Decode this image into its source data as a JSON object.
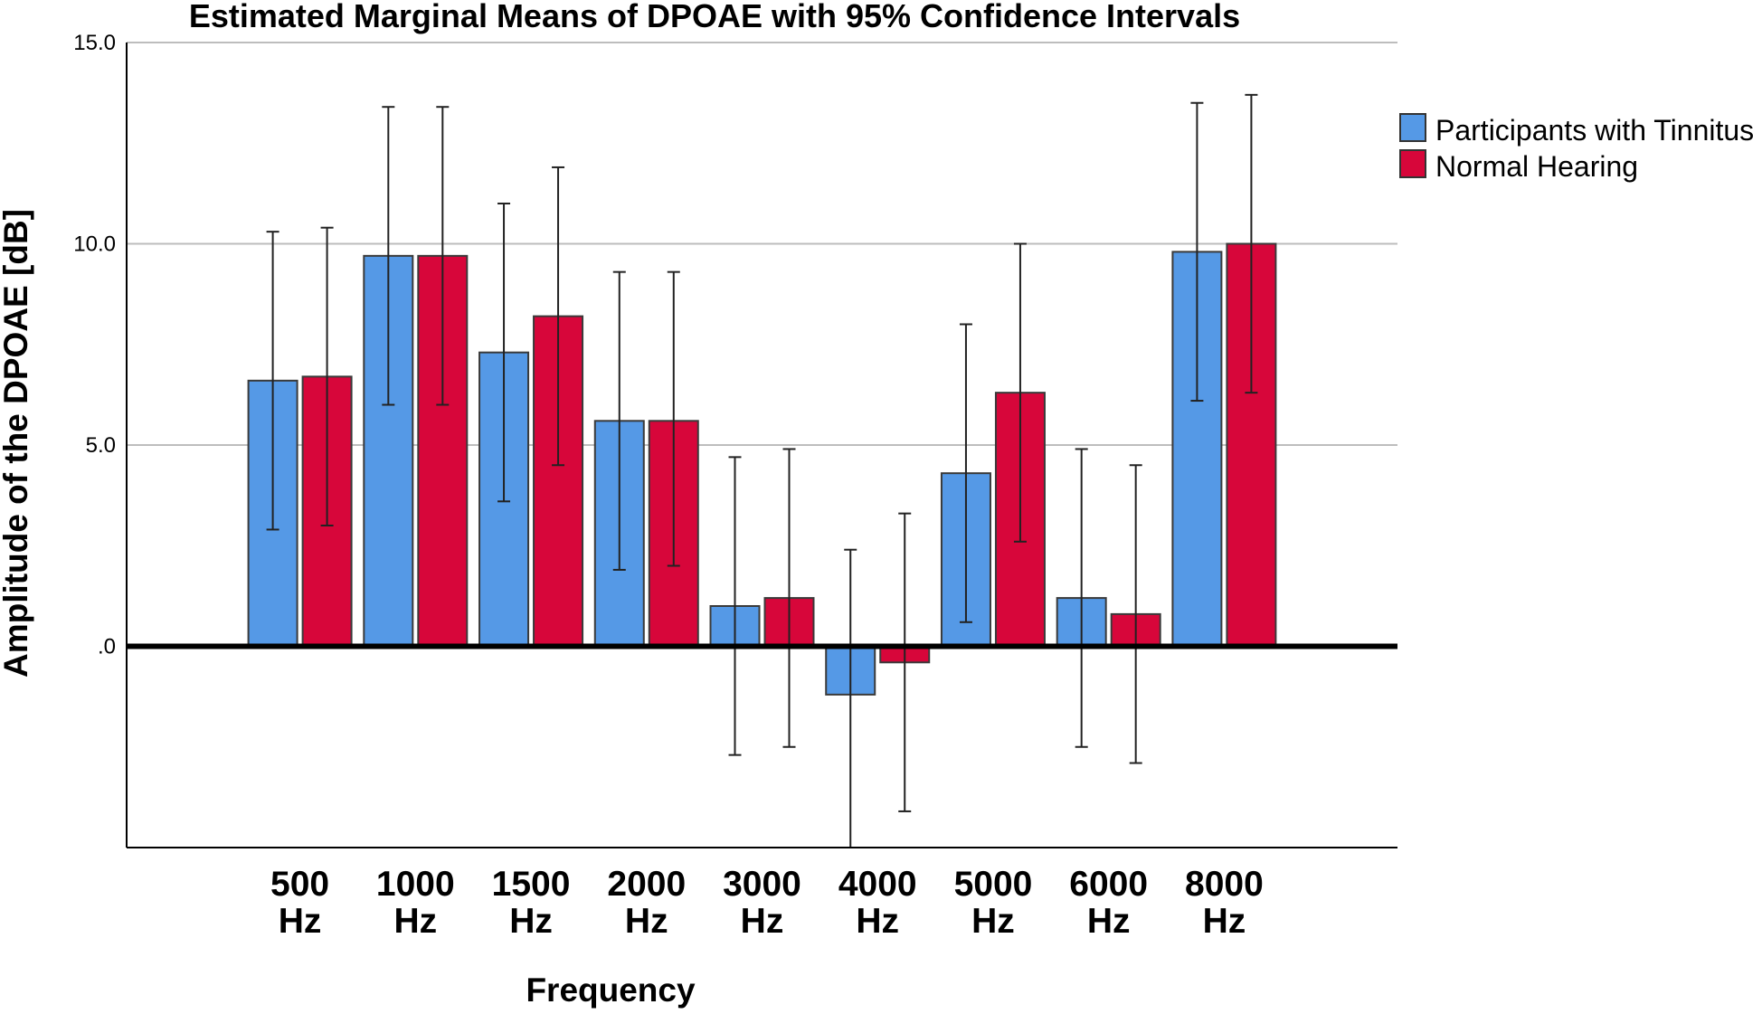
{
  "chart_data": {
    "type": "bar",
    "title": "Estimated Marginal Means of DPOAE with 95% Confidence Intervals",
    "xlabel": "Frequency",
    "ylabel": "Amplitude of the DPOAE [dB]",
    "ylim": [
      -5.0,
      15.0
    ],
    "yticks": [
      {
        "value": 15,
        "label": "15.0"
      },
      {
        "value": 10,
        "label": "10.0"
      },
      {
        "value": 5,
        "label": "5.0"
      },
      {
        "value": 0,
        "label": ".0"
      }
    ],
    "grid": true,
    "legend_position": "top-right",
    "categories": [
      {
        "line1": "500",
        "line2": "Hz"
      },
      {
        "line1": "1000",
        "line2": "Hz"
      },
      {
        "line1": "1500",
        "line2": "Hz"
      },
      {
        "line1": "2000",
        "line2": "Hz"
      },
      {
        "line1": "3000",
        "line2": "Hz"
      },
      {
        "line1": "4000",
        "line2": "Hz"
      },
      {
        "line1": "5000",
        "line2": "Hz"
      },
      {
        "line1": "6000",
        "line2": "Hz"
      },
      {
        "line1": "8000",
        "line2": "Hz"
      }
    ],
    "series": [
      {
        "name": "Participants with Tinnitus",
        "color": "#5599E6",
        "values": [
          6.6,
          9.7,
          7.3,
          5.6,
          1.0,
          -1.2,
          4.3,
          1.2,
          9.8
        ],
        "ci_lower": [
          2.9,
          6.0,
          3.6,
          1.9,
          -2.7,
          -5.0,
          0.6,
          -2.5,
          6.1
        ],
        "ci_upper": [
          10.3,
          13.4,
          11.0,
          9.3,
          4.7,
          2.4,
          8.0,
          4.9,
          13.5
        ]
      },
      {
        "name": "Normal Hearing",
        "color": "#D7063A",
        "values": [
          6.7,
          9.7,
          8.2,
          5.6,
          1.2,
          -0.4,
          6.3,
          0.8,
          10.0
        ],
        "ci_lower": [
          3.0,
          6.0,
          4.5,
          2.0,
          -2.5,
          -4.1,
          2.6,
          -2.9,
          6.3
        ],
        "ci_upper": [
          10.4,
          13.4,
          11.9,
          9.3,
          4.9,
          3.3,
          10.0,
          4.5,
          13.7
        ]
      }
    ]
  }
}
